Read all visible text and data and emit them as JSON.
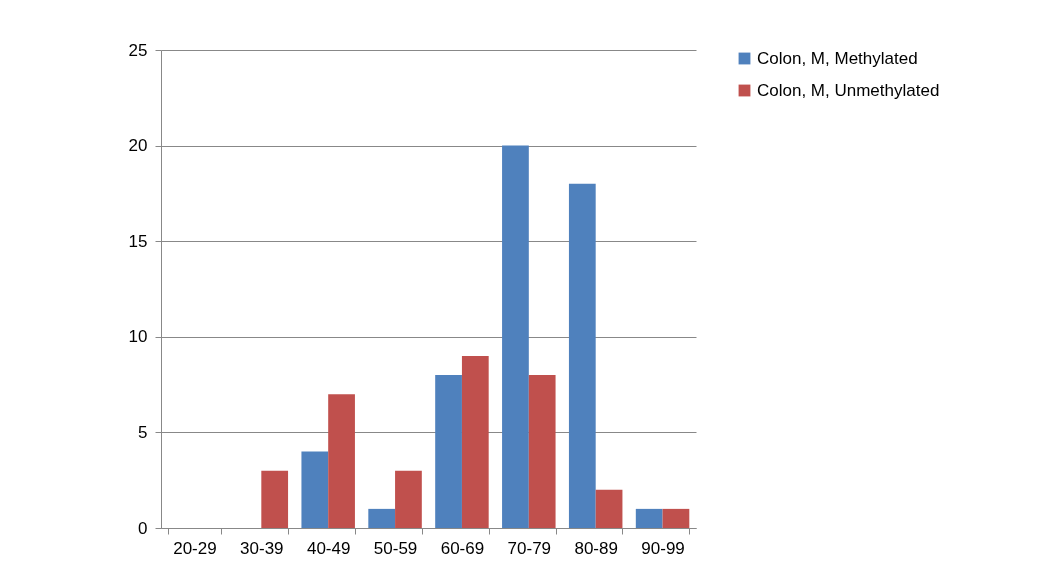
{
  "chart_data": {
    "type": "bar",
    "categories": [
      "20-29",
      "30-39",
      "40-49",
      "50-59",
      "60-69",
      "70-79",
      "80-89",
      "90-99"
    ],
    "series": [
      {
        "name": "Colon, M, Methylated",
        "color": "#4f81bd",
        "values": [
          0,
          0,
          4,
          1,
          8,
          20,
          18,
          1
        ]
      },
      {
        "name": "Colon, M, Unmethylated",
        "color": "#c0504d",
        "values": [
          0,
          3,
          7,
          3,
          9,
          8,
          2,
          1
        ]
      }
    ],
    "ylim": [
      0,
      25
    ],
    "yticks": [
      0,
      5,
      10,
      15,
      20,
      25
    ],
    "grid": "y",
    "legend": "right"
  }
}
